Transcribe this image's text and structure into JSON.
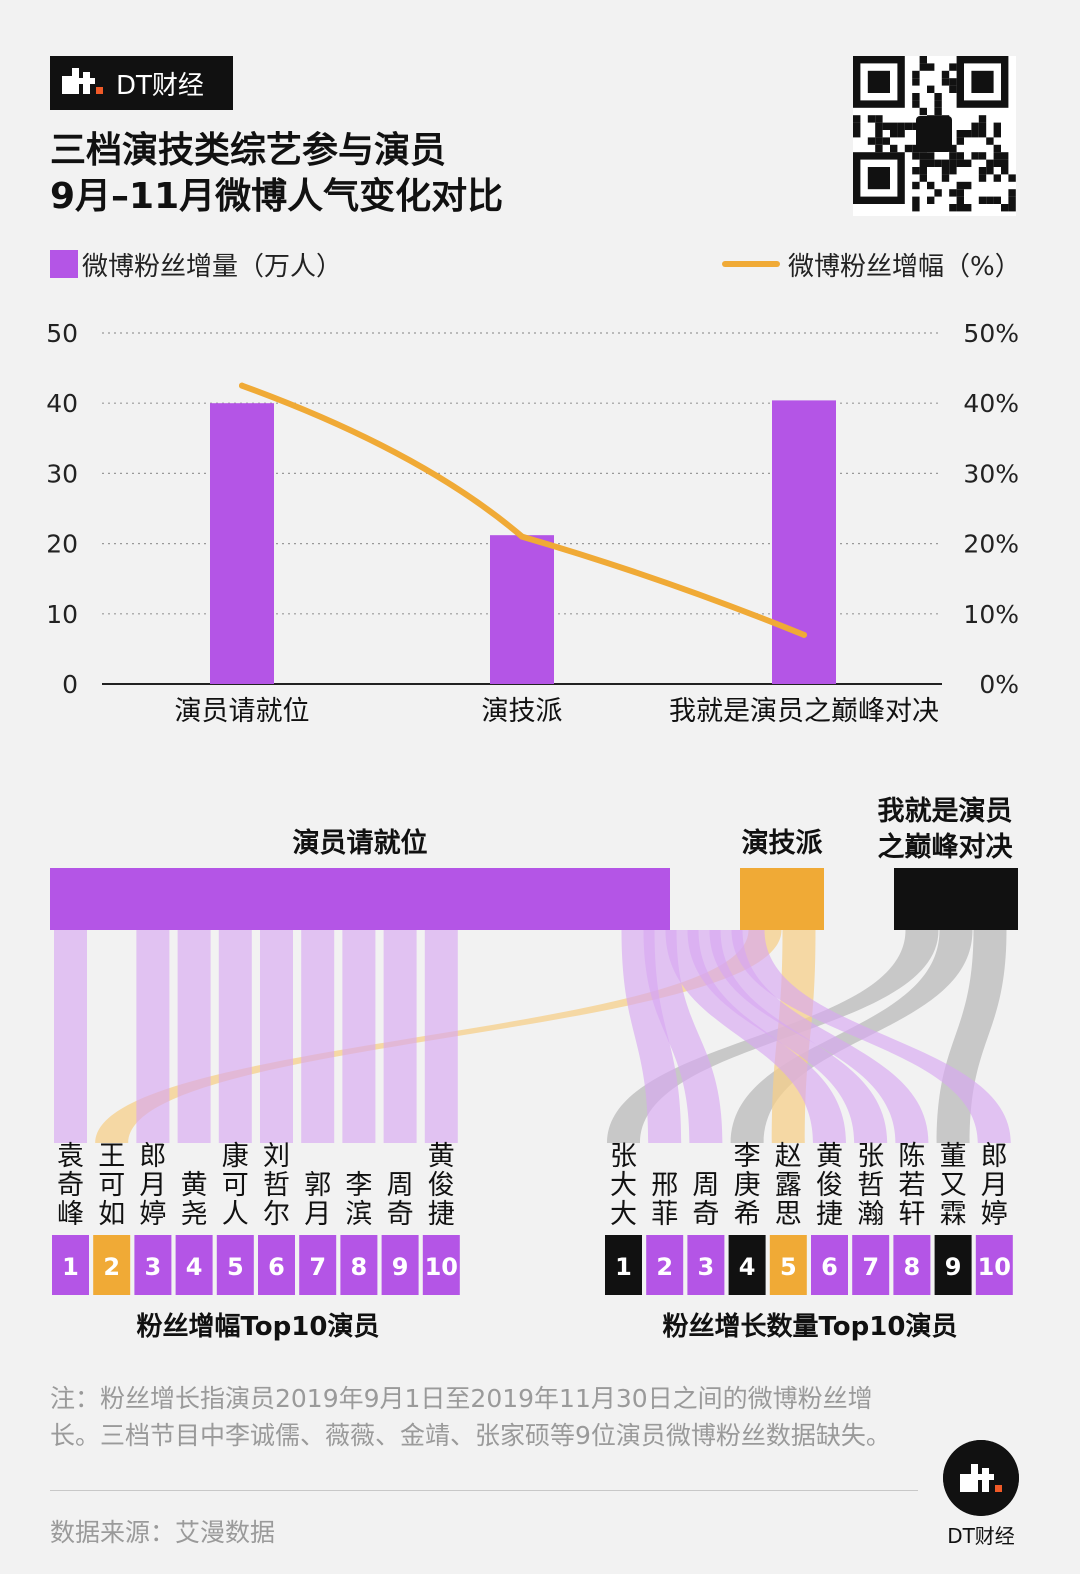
{
  "header": {
    "brand": "DT财经",
    "title_line1": "三档演技类综艺参与演员",
    "title_line2": "9月–11月微博人气变化对比"
  },
  "legend": {
    "bar_label": "微博粉丝增量（万人）",
    "line_label": "微博粉丝增幅（%）"
  },
  "colors": {
    "purple": "#b455e6",
    "light_purple": "#d7a7f1",
    "orange": "#f0aa36",
    "black": "#111111",
    "gray": "#b9b9b9"
  },
  "chart_data": {
    "type": "bar",
    "categories": [
      "演员请就位",
      "演技派",
      "我就是演员之巅峰对决"
    ],
    "series": [
      {
        "name": "微博粉丝增量（万人）",
        "type": "bar",
        "axis": "left",
        "values": [
          40,
          21.2,
          40.4
        ]
      },
      {
        "name": "微博粉丝增幅（%）",
        "type": "line",
        "axis": "right",
        "values": [
          42.5,
          21,
          7
        ]
      }
    ],
    "ylim_left": [
      0,
      50
    ],
    "ylim_right": [
      0,
      50
    ],
    "yticks_left": [
      "0",
      "10",
      "20",
      "30",
      "40",
      "50"
    ],
    "yticks_right": [
      "0%",
      "10%",
      "20%",
      "30%",
      "40%",
      "50%"
    ],
    "grid": true
  },
  "flow": {
    "programs": [
      "演员请就位",
      "演技派",
      "我就是演员\n之巅峰对决"
    ],
    "left_group": {
      "title": "粉丝增幅Top10演员",
      "actors": [
        {
          "rank": "1",
          "name": "袁奇峰",
          "program": 0
        },
        {
          "rank": "2",
          "name": "王可如",
          "program": 1
        },
        {
          "rank": "3",
          "name": "郎月婷",
          "program": 0
        },
        {
          "rank": "4",
          "name": "黄尧",
          "program": 0
        },
        {
          "rank": "5",
          "name": "康可人",
          "program": 0
        },
        {
          "rank": "6",
          "name": "刘哲尔",
          "program": 0
        },
        {
          "rank": "7",
          "name": "郭月",
          "program": 0
        },
        {
          "rank": "8",
          "name": "李滨",
          "program": 0
        },
        {
          "rank": "9",
          "name": "周奇",
          "program": 0
        },
        {
          "rank": "10",
          "name": "黄俊捷",
          "program": 0
        }
      ]
    },
    "right_group": {
      "title": "粉丝增长数量Top10演员",
      "actors": [
        {
          "rank": "1",
          "name": "张大大",
          "program": 2
        },
        {
          "rank": "2",
          "name": "邢菲",
          "program": 0
        },
        {
          "rank": "3",
          "name": "周奇",
          "program": 0
        },
        {
          "rank": "4",
          "name": "李庚希",
          "program": 2
        },
        {
          "rank": "5",
          "name": "赵露思",
          "program": 1
        },
        {
          "rank": "6",
          "name": "黄俊捷",
          "program": 0
        },
        {
          "rank": "7",
          "name": "张哲瀚",
          "program": 0
        },
        {
          "rank": "8",
          "name": "陈若轩",
          "program": 0
        },
        {
          "rank": "9",
          "name": "董又霖",
          "program": 2
        },
        {
          "rank": "10",
          "name": "郎月婷",
          "program": 0
        }
      ]
    }
  },
  "footer": {
    "note": "注：粉丝增长指演员2019年9月1日至2019年11月30日之间的微博粉丝增长。三档节目中李诚儒、薇薇、金靖、张家硕等9位演员微博粉丝数据缺失。",
    "source": "数据来源：艾漫数据",
    "brand": "DT财经"
  }
}
